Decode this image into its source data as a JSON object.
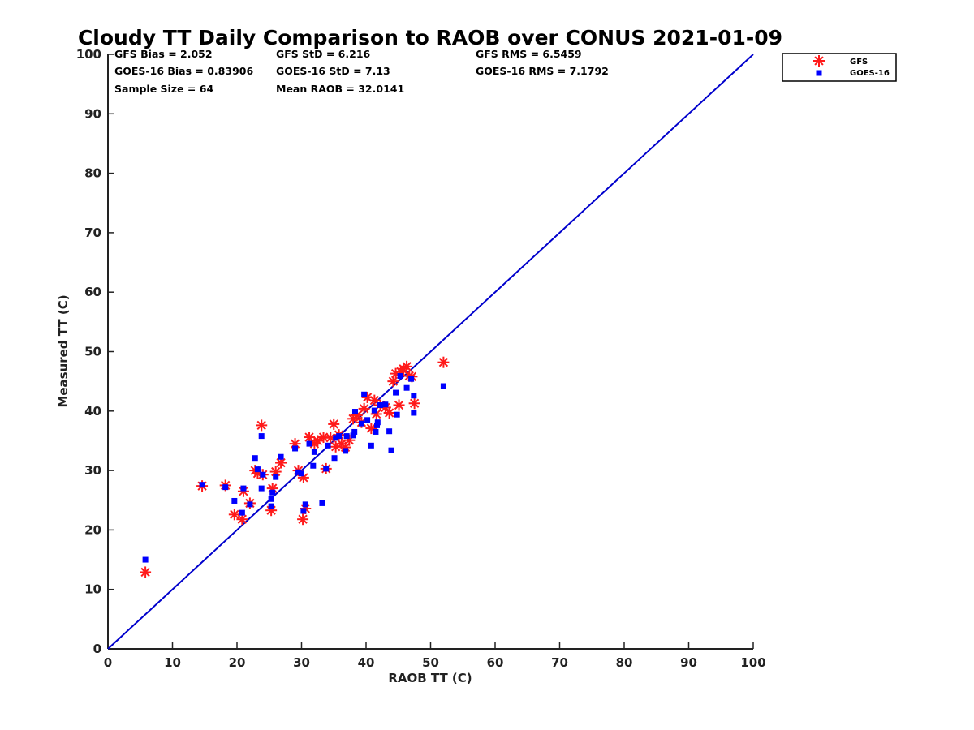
{
  "chart_data": {
    "type": "scatter",
    "title": "Cloudy TT Daily Comparison to RAOB over CONUS 2021-01-09",
    "xlabel": "RAOB TT (C)",
    "ylabel": "Measured TT (C)",
    "xlim": [
      0,
      100
    ],
    "ylim": [
      0,
      100
    ],
    "xticks": [
      "0",
      "10",
      "20",
      "30",
      "40",
      "50",
      "60",
      "70",
      "80",
      "90",
      "100"
    ],
    "yticks": [
      "0",
      "10",
      "20",
      "30",
      "40",
      "50",
      "60",
      "70",
      "80",
      "90",
      "100"
    ],
    "grid": false,
    "legend_position": "top-right, outside plot",
    "reference_line": {
      "x": [
        0,
        100
      ],
      "y": [
        0,
        100
      ],
      "color": "#0000cc"
    },
    "stats": [
      "GFS Bias = 2.052",
      "GOES-16 Bias = 0.83906",
      "Sample Size = 64",
      "GFS StD = 6.216",
      "GOES-16 StD = 7.13",
      "Mean RAOB = 32.0141",
      "GFS RMS = 6.5459",
      "GOES-16 RMS = 7.1792"
    ],
    "series": [
      {
        "name": "GFS",
        "marker": "asterisk",
        "color": "#ff1a1a",
        "points": [
          [
            5.8,
            12.9
          ],
          [
            14.6,
            27.4
          ],
          [
            18.2,
            27.5
          ],
          [
            19.6,
            22.6
          ],
          [
            20.8,
            21.8
          ],
          [
            21.0,
            26.5
          ],
          [
            22.0,
            24.5
          ],
          [
            22.8,
            30.0
          ],
          [
            23.2,
            29.5
          ],
          [
            23.8,
            37.6
          ],
          [
            24.0,
            29.3
          ],
          [
            25.3,
            23.3
          ],
          [
            25.5,
            27.0
          ],
          [
            26.0,
            29.8
          ],
          [
            26.8,
            31.3
          ],
          [
            29.0,
            34.5
          ],
          [
            29.5,
            30.0
          ],
          [
            30.2,
            21.8
          ],
          [
            30.3,
            28.8
          ],
          [
            30.6,
            23.6
          ],
          [
            31.2,
            35.6
          ],
          [
            32.0,
            34.5
          ],
          [
            32.5,
            35.0
          ],
          [
            33.4,
            35.6
          ],
          [
            33.8,
            30.3
          ],
          [
            34.5,
            35.5
          ],
          [
            35.0,
            37.8
          ],
          [
            35.3,
            34.0
          ],
          [
            35.8,
            36.0
          ],
          [
            36.2,
            34.5
          ],
          [
            36.8,
            33.9
          ],
          [
            37.4,
            35.1
          ],
          [
            38.0,
            38.7
          ],
          [
            38.6,
            39.3
          ],
          [
            39.3,
            38.1
          ],
          [
            39.7,
            40.4
          ],
          [
            40.2,
            42.3
          ],
          [
            40.8,
            37.1
          ],
          [
            41.3,
            41.8
          ],
          [
            41.6,
            39.5
          ],
          [
            42.2,
            41.0
          ],
          [
            43.0,
            40.6
          ],
          [
            43.6,
            39.7
          ],
          [
            44.2,
            45.0
          ],
          [
            44.6,
            46.3
          ],
          [
            45.1,
            41.0
          ],
          [
            45.4,
            46.6
          ],
          [
            45.8,
            47.1
          ],
          [
            46.3,
            47.5
          ],
          [
            46.7,
            45.9
          ],
          [
            47.1,
            45.8
          ],
          [
            47.5,
            41.3
          ],
          [
            52.0,
            48.2
          ]
        ]
      },
      {
        "name": "GOES-16",
        "marker": "square",
        "color": "#0000ff",
        "points": [
          [
            5.8,
            15.0
          ],
          [
            14.6,
            27.6
          ],
          [
            18.2,
            27.2
          ],
          [
            19.6,
            24.9
          ],
          [
            20.8,
            22.9
          ],
          [
            21.0,
            27.0
          ],
          [
            22.0,
            24.3
          ],
          [
            22.8,
            32.1
          ],
          [
            23.2,
            30.2
          ],
          [
            23.8,
            35.8
          ],
          [
            23.8,
            27.0
          ],
          [
            24.0,
            29.3
          ],
          [
            25.3,
            24.0
          ],
          [
            25.3,
            25.2
          ],
          [
            25.5,
            26.3
          ],
          [
            26.0,
            28.9
          ],
          [
            26.8,
            32.3
          ],
          [
            29.0,
            33.7
          ],
          [
            29.5,
            29.7
          ],
          [
            30.0,
            29.5
          ],
          [
            30.3,
            23.2
          ],
          [
            30.6,
            24.3
          ],
          [
            31.2,
            34.5
          ],
          [
            31.8,
            30.8
          ],
          [
            32.0,
            33.1
          ],
          [
            33.2,
            24.5
          ],
          [
            33.8,
            30.3
          ],
          [
            34.1,
            34.2
          ],
          [
            35.1,
            32.1
          ],
          [
            35.3,
            35.5
          ],
          [
            35.8,
            35.8
          ],
          [
            36.8,
            33.3
          ],
          [
            37.0,
            35.8
          ],
          [
            38.0,
            35.9
          ],
          [
            38.2,
            36.5
          ],
          [
            38.3,
            39.9
          ],
          [
            39.3,
            37.9
          ],
          [
            39.7,
            42.8
          ],
          [
            40.2,
            38.5
          ],
          [
            40.8,
            34.2
          ],
          [
            41.3,
            40.1
          ],
          [
            41.5,
            36.5
          ],
          [
            41.7,
            37.6
          ],
          [
            41.8,
            38.1
          ],
          [
            42.2,
            41.0
          ],
          [
            43.0,
            41.1
          ],
          [
            43.6,
            36.6
          ],
          [
            43.9,
            33.4
          ],
          [
            44.6,
            43.1
          ],
          [
            44.8,
            39.4
          ],
          [
            45.3,
            45.9
          ],
          [
            46.3,
            43.9
          ],
          [
            47.0,
            45.4
          ],
          [
            47.4,
            42.6
          ],
          [
            47.4,
            39.7
          ],
          [
            52.0,
            44.2
          ]
        ]
      }
    ]
  },
  "legend": {
    "items": [
      {
        "label": "GFS"
      },
      {
        "label": "GOES-16"
      }
    ]
  }
}
